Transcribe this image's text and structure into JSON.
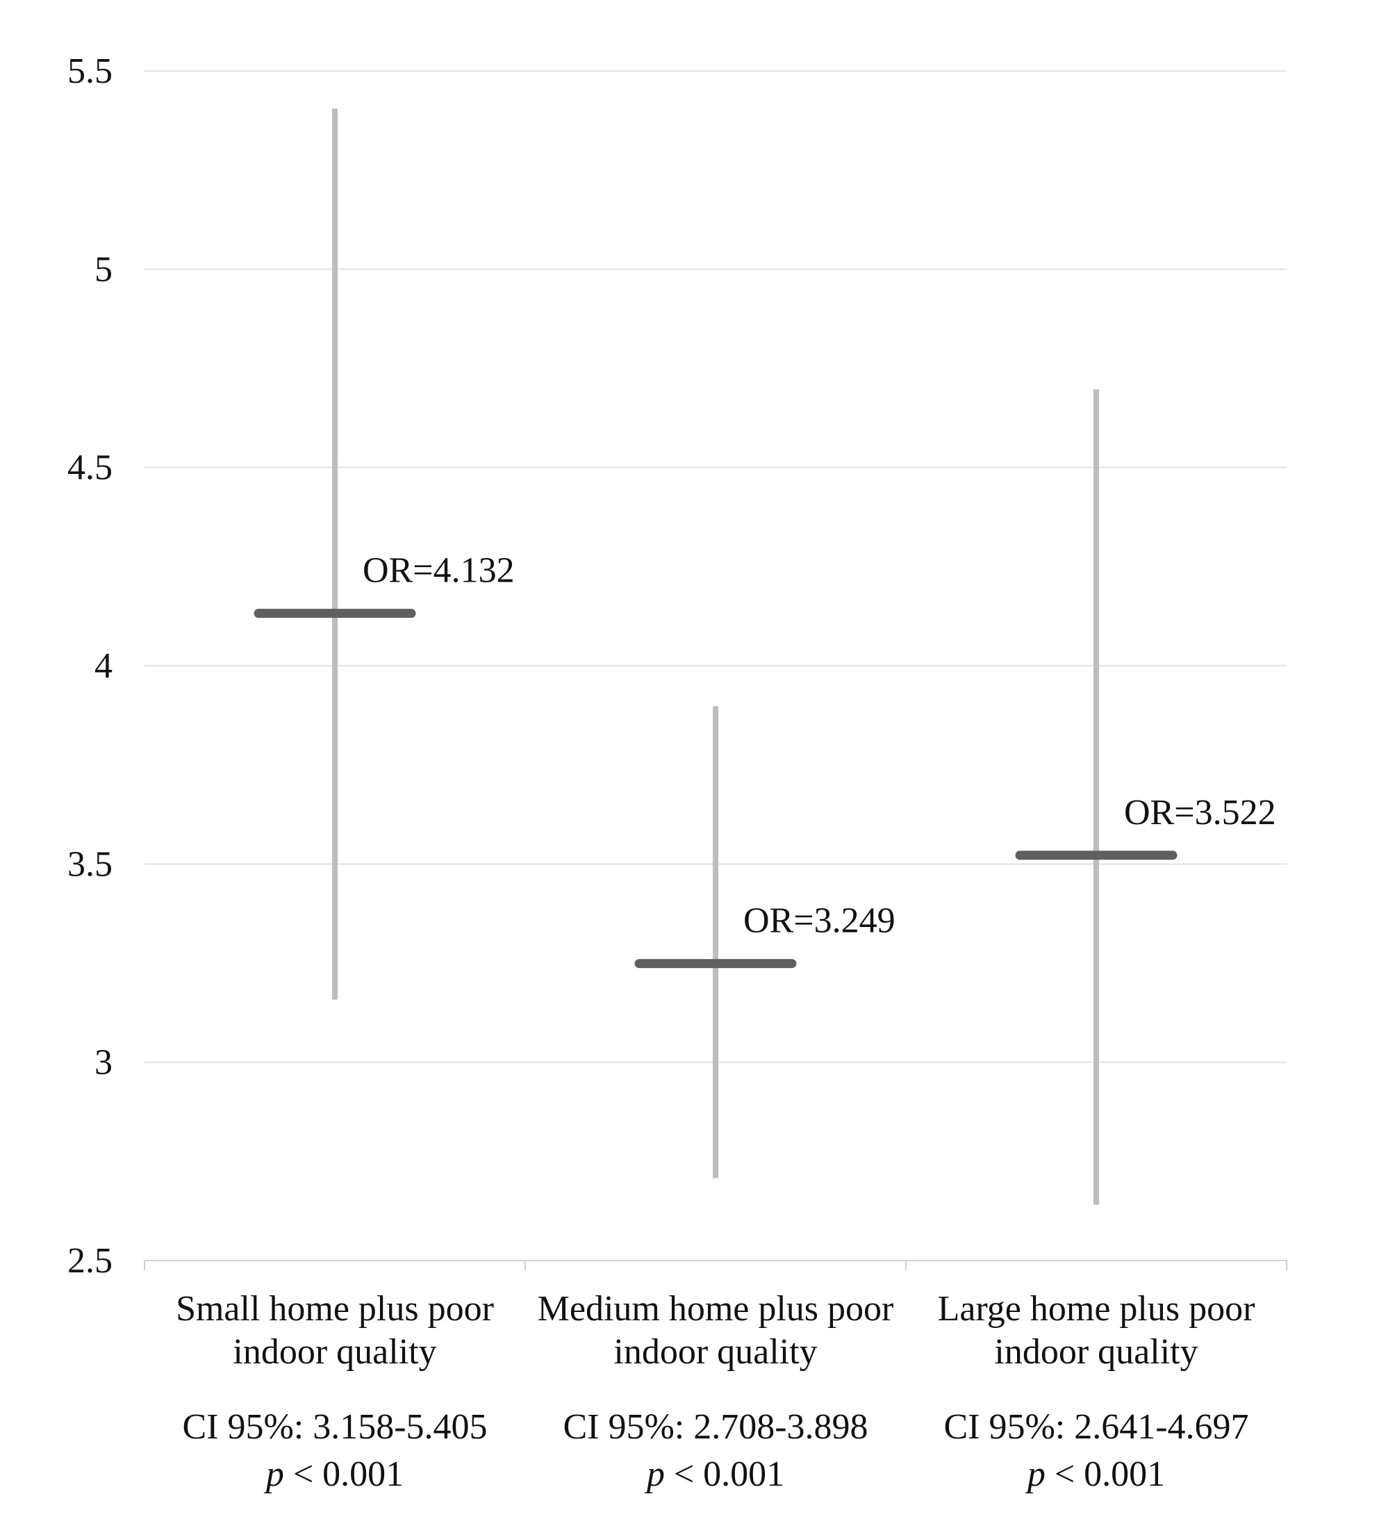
{
  "chart_data": {
    "type": "error-bar",
    "ylim": [
      2.5,
      5.5
    ],
    "yticks": [
      "2.5",
      "3",
      "3.5",
      "4",
      "4.5",
      "5",
      "5.5"
    ],
    "grid": true,
    "categories": [
      {
        "label_lines": [
          "Small home plus poor",
          "indoor quality"
        ],
        "or": 4.132,
        "or_label": "OR=4.132",
        "ci_low": 3.158,
        "ci_high": 5.405,
        "ci_label": "CI 95%: 3.158-5.405",
        "p_symbol": "p",
        "p_value": "< 0.001"
      },
      {
        "label_lines": [
          "Medium home plus poor",
          "indoor quality"
        ],
        "or": 3.249,
        "or_label": "OR=3.249",
        "ci_low": 2.708,
        "ci_high": 3.898,
        "ci_label": "CI 95%: 2.708-3.898",
        "p_symbol": "p",
        "p_value": "< 0.001"
      },
      {
        "label_lines": [
          "Large home plus poor",
          "indoor quality"
        ],
        "or": 3.522,
        "or_label": "OR=3.522",
        "ci_low": 2.641,
        "ci_high": 4.697,
        "ci_label": "CI 95%: 2.641-4.697",
        "p_symbol": "p",
        "p_value": "< 0.001"
      }
    ],
    "colors": {
      "ci_line": "#bdbdbd",
      "or_bar": "#5f5f5f",
      "grid": "#e3e3e3",
      "axis": "#d0d0d0"
    }
  }
}
